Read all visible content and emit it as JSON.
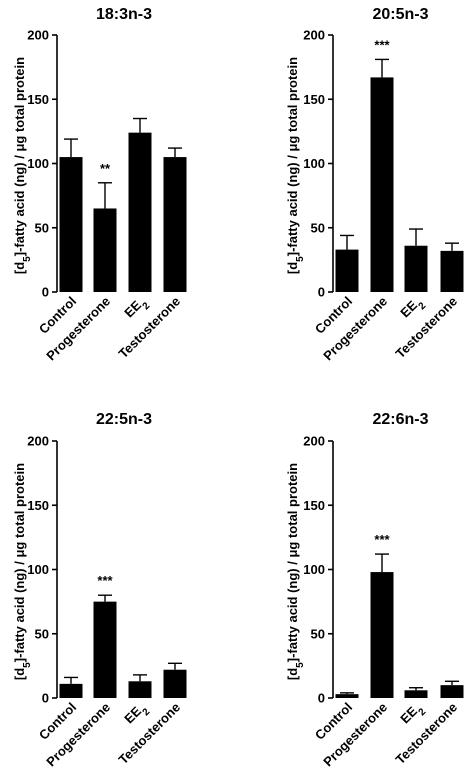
{
  "chart_data": [
    {
      "type": "bar",
      "title": "18:3n-3",
      "ylabel_parts": [
        "[d",
        "5",
        "]-fatty acid (ng) / ",
        "μ",
        "g total protein"
      ],
      "ylim": [
        0,
        200
      ],
      "yticks": [
        0,
        50,
        100,
        150,
        200
      ],
      "categories": [
        {
          "text": "Control",
          "sub": ""
        },
        {
          "text": "Progesterone",
          "sub": ""
        },
        {
          "text": "EE",
          "sub": "2"
        },
        {
          "text": "Testosterone",
          "sub": ""
        }
      ],
      "values": [
        105,
        65,
        124,
        105
      ],
      "errors": [
        14,
        20,
        11,
        7
      ],
      "significance": [
        "",
        "**",
        "",
        ""
      ]
    },
    {
      "type": "bar",
      "title": "20:5n-3",
      "ylabel_parts": [
        "[d",
        "5",
        "]-fatty acid (ng) / ",
        "μ",
        "g total protein"
      ],
      "ylim": [
        0,
        200
      ],
      "yticks": [
        0,
        50,
        100,
        150,
        200
      ],
      "categories": [
        {
          "text": "Control",
          "sub": ""
        },
        {
          "text": "Progesterone",
          "sub": ""
        },
        {
          "text": "EE",
          "sub": "2"
        },
        {
          "text": "Testosterone",
          "sub": ""
        }
      ],
      "values": [
        33,
        167,
        36,
        32
      ],
      "errors": [
        11,
        14,
        13,
        6
      ],
      "significance": [
        "",
        "***",
        "",
        ""
      ]
    },
    {
      "type": "bar",
      "title": "22:5n-3",
      "ylabel_parts": [
        "[d",
        "5",
        "]-fatty acid (ng) / ",
        "μ",
        "g total protein"
      ],
      "ylim": [
        0,
        200
      ],
      "yticks": [
        0,
        50,
        100,
        150,
        200
      ],
      "categories": [
        {
          "text": "Control",
          "sub": ""
        },
        {
          "text": "Progesterone",
          "sub": ""
        },
        {
          "text": "EE",
          "sub": "2"
        },
        {
          "text": "Testosterone",
          "sub": ""
        }
      ],
      "values": [
        11,
        75,
        13,
        22
      ],
      "errors": [
        5,
        5,
        5,
        5
      ],
      "significance": [
        "",
        "***",
        "",
        ""
      ]
    },
    {
      "type": "bar",
      "title": "22:6n-3",
      "ylabel_parts": [
        "[d",
        "5",
        "]-fatty acid (ng) / ",
        "μ",
        "g total protein"
      ],
      "ylim": [
        0,
        200
      ],
      "yticks": [
        0,
        50,
        100,
        150,
        200
      ],
      "categories": [
        {
          "text": "Control",
          "sub": ""
        },
        {
          "text": "Progesterone",
          "sub": ""
        },
        {
          "text": "EE",
          "sub": "2"
        },
        {
          "text": "Testosterone",
          "sub": ""
        }
      ],
      "values": [
        3,
        98,
        6,
        10
      ],
      "errors": [
        1,
        14,
        2,
        3
      ],
      "significance": [
        "",
        "***",
        "",
        ""
      ]
    }
  ],
  "colors": {
    "bar": "#000000",
    "axis": "#000000",
    "background": "#ffffff"
  }
}
